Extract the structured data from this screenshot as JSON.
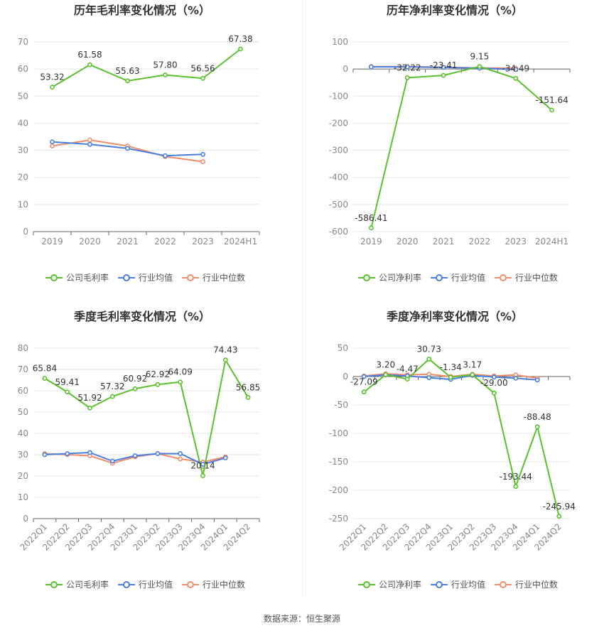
{
  "footer": "数据来源：恒生聚源",
  "colors": {
    "company": "#5ac02e",
    "avg": "#4a7fe0",
    "median": "#f08e6c",
    "grid": "#e6e6e6",
    "axis": "#999999",
    "text": "#333333"
  },
  "chart_data": [
    {
      "id": "annual-gross",
      "type": "line",
      "title": "历年毛利率变化情况（%）",
      "categories": [
        "2019",
        "2020",
        "2021",
        "2022",
        "2023",
        "2024H1"
      ],
      "ylim": [
        0,
        70
      ],
      "yticks": [
        0,
        10,
        20,
        30,
        40,
        50,
        60,
        70
      ],
      "legend": [
        "公司毛利率",
        "行业均值",
        "行业中位数"
      ],
      "rotated_x": false,
      "series": [
        {
          "key": "company",
          "values": [
            53.32,
            61.58,
            55.63,
            57.8,
            56.56,
            67.38
          ],
          "labels": [
            "53.32",
            "61.58",
            "55.63",
            "57.80",
            "56.56",
            "67.38"
          ]
        },
        {
          "key": "avg",
          "values": [
            33.1,
            32.2,
            30.7,
            28.0,
            28.5,
            null
          ]
        },
        {
          "key": "median",
          "values": [
            31.6,
            33.8,
            31.6,
            27.7,
            25.8,
            null
          ]
        }
      ]
    },
    {
      "id": "annual-net",
      "type": "line",
      "title": "历年净利率变化情况（%）",
      "categories": [
        "2019",
        "2020",
        "2021",
        "2022",
        "2023",
        "2024H1"
      ],
      "ylim": [
        -600,
        100
      ],
      "yticks": [
        -600,
        -500,
        -400,
        -300,
        -200,
        -100,
        0,
        100
      ],
      "legend": [
        "公司净利率",
        "行业均值",
        "行业中位数"
      ],
      "rotated_x": false,
      "series": [
        {
          "key": "company",
          "values": [
            -586.41,
            -32.22,
            -23.41,
            9.15,
            -34.49,
            -151.64
          ],
          "labels": [
            "-586.41",
            "-32.22",
            "-23.41",
            "9.15",
            "-34.49",
            "-151.64"
          ]
        },
        {
          "key": "avg",
          "values": [
            8,
            8,
            6,
            3,
            -2,
            null
          ]
        },
        {
          "key": "median",
          "values": [
            9,
            9,
            7,
            4,
            3,
            null
          ]
        }
      ]
    },
    {
      "id": "quarter-gross",
      "type": "line",
      "title": "季度毛利率变化情况（%）",
      "categories": [
        "2022Q1",
        "2022Q2",
        "2022Q3",
        "2022Q4",
        "2023Q1",
        "2023Q2",
        "2023Q3",
        "2023Q4",
        "2024Q1",
        "2024Q2"
      ],
      "ylim": [
        0,
        80
      ],
      "yticks": [
        0,
        10,
        20,
        30,
        40,
        50,
        60,
        70,
        80
      ],
      "legend": [
        "公司毛利率",
        "行业均值",
        "行业中位数"
      ],
      "rotated_x": true,
      "series": [
        {
          "key": "company",
          "values": [
            65.84,
            59.41,
            51.92,
            57.32,
            60.92,
            62.92,
            64.09,
            20.14,
            74.43,
            56.85
          ],
          "labels": [
            "65.84",
            "59.41",
            "51.92",
            "57.32",
            "60.92",
            "62.92",
            "64.09",
            "20.14",
            "74.43",
            "56.85"
          ]
        },
        {
          "key": "avg",
          "values": [
            30.0,
            30.5,
            31.0,
            27.0,
            29.5,
            30.5,
            30.5,
            25.5,
            28.5,
            null
          ]
        },
        {
          "key": "median",
          "values": [
            30.5,
            30.0,
            29.5,
            26.0,
            29.0,
            30.5,
            28.0,
            26.5,
            29.0,
            null
          ]
        }
      ]
    },
    {
      "id": "quarter-net",
      "type": "line",
      "title": "季度净利率变化情况（%）",
      "categories": [
        "2022Q1",
        "2022Q2",
        "2022Q3",
        "2022Q4",
        "2023Q1",
        "2023Q2",
        "2023Q3",
        "2023Q4",
        "2024Q1",
        "2024Q2"
      ],
      "ylim": [
        -250,
        50
      ],
      "yticks": [
        -250,
        -200,
        -150,
        -100,
        -50,
        0,
        50
      ],
      "legend": [
        "公司净利率",
        "行业均值",
        "行业中位数"
      ],
      "rotated_x": true,
      "series": [
        {
          "key": "company",
          "values": [
            -27.09,
            3.2,
            -4.47,
            30.73,
            -1.34,
            3.17,
            -29.0,
            -193.44,
            -88.48,
            -245.94
          ],
          "labels": [
            "-27.09",
            "3.20",
            "-4.47",
            "30.73",
            "-1.34",
            "3.17",
            "-29.00",
            "-193.44",
            "-88.48",
            "-245.94"
          ]
        },
        {
          "key": "avg",
          "values": [
            0,
            3,
            1,
            -2,
            -5,
            2,
            -1,
            -3,
            -6,
            null
          ]
        },
        {
          "key": "median",
          "values": [
            1,
            5,
            3,
            4,
            0,
            4,
            1,
            3,
            -3,
            null
          ]
        }
      ]
    }
  ]
}
